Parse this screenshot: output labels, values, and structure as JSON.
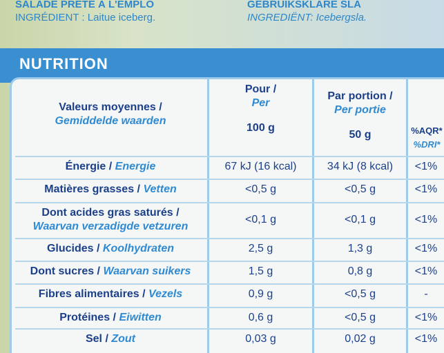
{
  "header": {
    "left_title": "SALADE PRÊTE À L'EMPLO",
    "left_ingredient": "INGRÉDIENT : Laitue iceberg.",
    "right_title": "GEBRUIKSKLARE SLA",
    "right_ingredient": "INGREDIËNT: Icebergsla."
  },
  "section_title": "NUTRITION",
  "table": {
    "head": {
      "label_fr": "Valeurs moyennes /",
      "label_nl": "Gemiddelde waarden",
      "col1_fr": "Pour /",
      "col1_nl": "Per",
      "col1_unit": "100 g",
      "col2_fr": "Par portion /",
      "col2_nl": "Per portie",
      "col2_unit": "50 g",
      "col3_fr": "%AQR*",
      "col3_nl": "%DRI*"
    },
    "rows": [
      {
        "fr": "Énergie /",
        "nl": "Energie",
        "per100": "67 kJ (16 kcal)",
        "portion": "34 kJ (8 kcal)",
        "ri": "<1%"
      },
      {
        "fr": "Matières grasses /",
        "nl": "Vetten",
        "per100": "<0,5 g",
        "portion": "<0,5 g",
        "ri": "<1%"
      },
      {
        "fr": "Dont acides gras saturés /",
        "nl": "Waarvan verzadigde vetzuren",
        "per100": "<0,1 g",
        "portion": "<0,1 g",
        "ri": "<1%"
      },
      {
        "fr": "Glucides /",
        "nl": "Koolhydraten",
        "per100": "2,5 g",
        "portion": "1,3 g",
        "ri": "<1%"
      },
      {
        "fr": "Dont sucres /",
        "nl": "Waarvan suikers",
        "per100": "1,5 g",
        "portion": "0,8 g",
        "ri": "<1%"
      },
      {
        "fr": "Fibres alimentaires /",
        "nl": "Vezels",
        "per100": "0,9 g",
        "portion": "<0,5 g",
        "ri": "-"
      },
      {
        "fr": "Protéines /",
        "nl": "Eiwitten",
        "per100": "0,6 g",
        "portion": "<0,5 g",
        "ri": "<1%"
      },
      {
        "fr": "Sel /",
        "nl": "Zout",
        "per100": "0,03 g",
        "portion": "0,02 g",
        "ri": "<1%"
      }
    ]
  }
}
